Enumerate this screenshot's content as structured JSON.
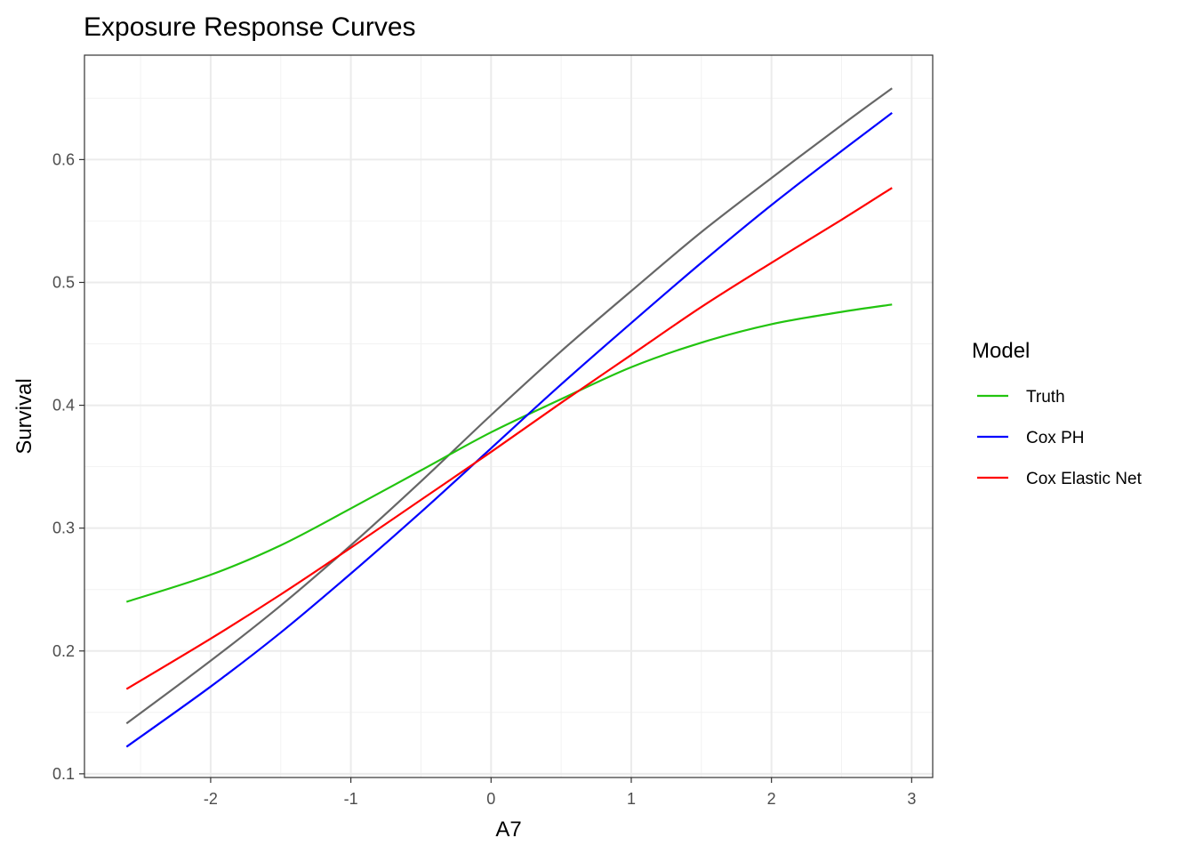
{
  "chart_data": {
    "type": "line",
    "title": "Exposure Response Curves",
    "xlabel": "A7",
    "ylabel": "Survival",
    "xlim": [
      -2.9,
      3.15
    ],
    "ylim": [
      0.097,
      0.685
    ],
    "x_ticks": [
      -2,
      -1,
      0,
      1,
      2,
      3
    ],
    "x_tick_labels": [
      "-2",
      "-1",
      "0",
      "1",
      "2",
      "3"
    ],
    "y_ticks": [
      0.1,
      0.2,
      0.3,
      0.4,
      0.5,
      0.6
    ],
    "y_tick_labels": [
      "0.1",
      "0.2",
      "0.3",
      "0.4",
      "0.5",
      "0.6"
    ],
    "grid": true,
    "legend": {
      "title": "Model",
      "position": "right",
      "entries": [
        "Truth",
        "Cox PH",
        "Cox Elastic Net"
      ]
    },
    "series": [
      {
        "name": "Truth",
        "color": "#22c40f",
        "in_legend": true,
        "points": [
          [
            -2.6,
            0.24
          ],
          [
            -2.0,
            0.262
          ],
          [
            -1.5,
            0.286
          ],
          [
            -1.0,
            0.316
          ],
          [
            -0.5,
            0.347
          ],
          [
            0.0,
            0.378
          ],
          [
            0.5,
            0.405
          ],
          [
            1.0,
            0.431
          ],
          [
            1.5,
            0.451
          ],
          [
            2.0,
            0.466
          ],
          [
            2.5,
            0.476
          ],
          [
            2.86,
            0.482
          ]
        ]
      },
      {
        "name": "Cox PH",
        "color": "#0000ff",
        "in_legend": true,
        "points": [
          [
            -2.6,
            0.122
          ],
          [
            -2.0,
            0.171
          ],
          [
            -1.5,
            0.215
          ],
          [
            -1.0,
            0.263
          ],
          [
            -0.5,
            0.313
          ],
          [
            0.0,
            0.365
          ],
          [
            0.5,
            0.417
          ],
          [
            1.0,
            0.467
          ],
          [
            1.5,
            0.516
          ],
          [
            2.0,
            0.563
          ],
          [
            2.5,
            0.607
          ],
          [
            2.86,
            0.638
          ]
        ]
      },
      {
        "name": "Cox Elastic Net",
        "color": "#ff0000",
        "in_legend": true,
        "points": [
          [
            -2.6,
            0.169
          ],
          [
            -2.0,
            0.21
          ],
          [
            -1.5,
            0.246
          ],
          [
            -1.0,
            0.284
          ],
          [
            -0.5,
            0.323
          ],
          [
            0.0,
            0.362
          ],
          [
            0.5,
            0.402
          ],
          [
            1.0,
            0.441
          ],
          [
            1.5,
            0.48
          ],
          [
            2.0,
            0.516
          ],
          [
            2.5,
            0.551
          ],
          [
            2.86,
            0.577
          ]
        ]
      },
      {
        "name": "",
        "color": "#666666",
        "in_legend": false,
        "points": [
          [
            -2.6,
            0.141
          ],
          [
            -2.0,
            0.192
          ],
          [
            -1.5,
            0.237
          ],
          [
            -1.0,
            0.286
          ],
          [
            -0.5,
            0.338
          ],
          [
            0.0,
            0.392
          ],
          [
            0.5,
            0.444
          ],
          [
            1.0,
            0.493
          ],
          [
            1.5,
            0.541
          ],
          [
            2.0,
            0.585
          ],
          [
            2.5,
            0.628
          ],
          [
            2.86,
            0.658
          ]
        ]
      }
    ]
  }
}
